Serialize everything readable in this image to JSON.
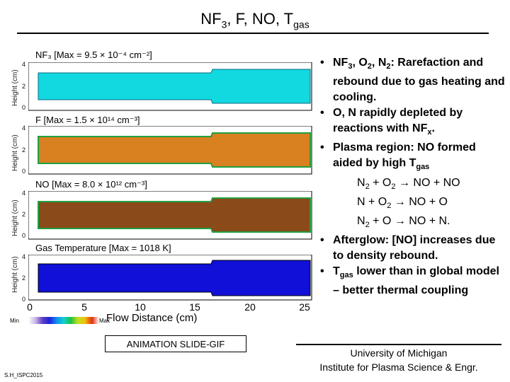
{
  "title": {
    "main": "NF",
    "sub1": "3",
    "rest": ", F, NO, T",
    "sub2": "gas"
  },
  "panels": [
    {
      "label": "NF₃ [Max = 9.5 × 10⁻⁴ cm⁻²]",
      "color": "#12d8e0",
      "ylabel": "Height (cm)",
      "yticks": [
        "4",
        "2",
        "0"
      ]
    },
    {
      "label": "F [Max = 1.5 × 10¹⁴ cm⁻³]",
      "color": "#d98020",
      "ylabel": "Height (cm)",
      "yticks": [
        "4",
        "2",
        "0"
      ]
    },
    {
      "label": "NO [Max = 8.0 × 10¹² cm⁻³]",
      "color": "#8a4a1a",
      "ylabel": "Height (cm)",
      "yticks": [
        "4",
        "2",
        "0"
      ]
    },
    {
      "label": "Gas Temperature [Max = 1018 K]",
      "color": "#1010d8",
      "ylabel": "Height (cm)",
      "yticks": [
        "4",
        "2",
        "0"
      ]
    }
  ],
  "x_axis": {
    "ticks": [
      "0",
      "5",
      "10",
      "15",
      "20",
      "25"
    ],
    "label": "Flow Distance (cm)"
  },
  "colorbar": {
    "min": "Min",
    "max": "Max"
  },
  "animation_label": "ANIMATION SLIDE-GIF",
  "footer_id": "S.H_ISPC2015",
  "bullets": {
    "b1": {
      "a": "NF",
      "s1": "3",
      "b": ", O",
      "s2": "2",
      "c": ", N",
      "s3": "2",
      "d": ": Rarefaction and rebound due to gas heating and cooling."
    },
    "b2": {
      "a": "O, N rapidly depleted by reactions with NF",
      "s1": "x",
      "b": "."
    },
    "b3": {
      "a": "Plasma region: NO formed aided by high T",
      "s1": "gas"
    },
    "reactions": [
      {
        "l1": "N",
        "s1": "2",
        "l2": " + O",
        "s2": "2",
        "l3": " → NO + NO"
      },
      {
        "l1": "N + O",
        "s1": "2",
        "l2": " → NO + O",
        "s2": "",
        "l3": ""
      },
      {
        "l1": "N",
        "s1": "2",
        "l2": " + O → NO + N.",
        "s2": "",
        "l3": ""
      }
    ],
    "b4": "Afterglow: [NO] increases due to density rebound.",
    "b5": {
      "a": "T",
      "s1": "gas",
      "b": " lower than in global model – better thermal coupling"
    },
    "dot": "•"
  },
  "affiliation": {
    "line1": "University of Michigan",
    "line2": "Institute for Plasma Science & Engr."
  }
}
